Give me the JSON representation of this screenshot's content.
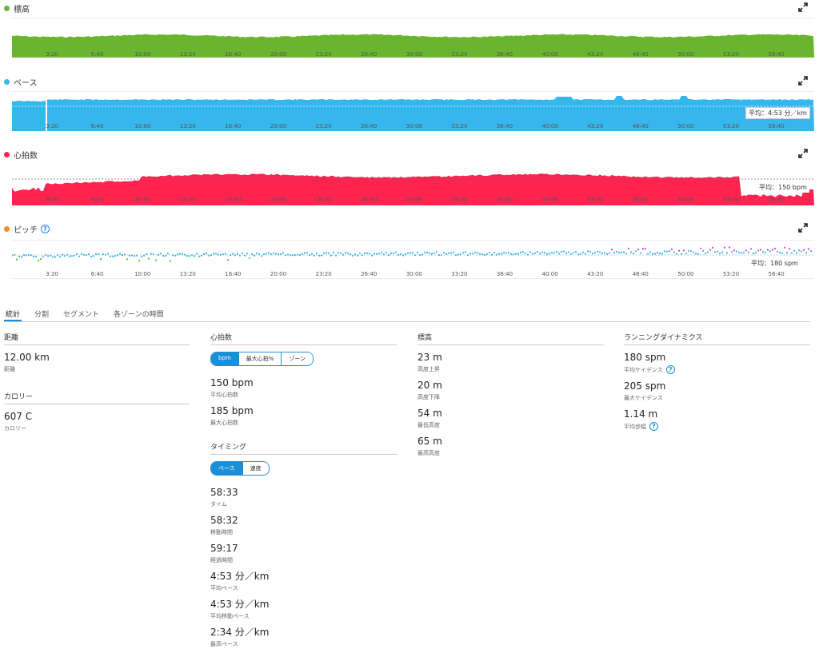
{
  "charts": {
    "time_ticks": [
      "3:20",
      "6:40",
      "10:00",
      "13:20",
      "16:40",
      "20:00",
      "23:20",
      "26:40",
      "30:00",
      "33:20",
      "36:40",
      "40:00",
      "43:20",
      "46:40",
      "50:00",
      "53:20",
      "56:40"
    ],
    "elevation": {
      "title": "標高",
      "color": "#6bb52e"
    },
    "pace": {
      "title": "ペース",
      "color": "#35b6ec",
      "avg_label": "平均：4:53 分／km"
    },
    "heart_rate": {
      "title": "心拍数",
      "color": "#ff2350",
      "avg_label": "平均：150 bpm"
    },
    "cadence": {
      "title": "ピッチ",
      "color": "#f08d1c",
      "avg_label": "平均：180 spm",
      "point_colors": [
        "#35b6ec",
        "#d93ad1",
        "#6bb52e"
      ]
    }
  },
  "tabs": [
    "統計",
    "分割",
    "セグメント",
    "各ゾーンの時間"
  ],
  "distance": {
    "title": "距離",
    "value": "12.00 km",
    "label": "距離"
  },
  "calories": {
    "title": "カロリー",
    "value": "607 C",
    "label": "カロリー"
  },
  "hr_section": {
    "title": "心拍数",
    "segments": [
      "bpm",
      "最大心拍%",
      "ゾーン"
    ],
    "stats": [
      {
        "value": "150 bpm",
        "label": "平均心拍数"
      },
      {
        "value": "185 bpm",
        "label": "最大心拍数"
      }
    ]
  },
  "timing": {
    "title": "タイミング",
    "segments": [
      "ペース",
      "速度"
    ],
    "stats": [
      {
        "value": "58:33",
        "label": "タイム"
      },
      {
        "value": "58:32",
        "label": "移動時間"
      },
      {
        "value": "59:17",
        "label": "経過時間"
      },
      {
        "value": "4:53 分／km",
        "label": "平均ペース"
      },
      {
        "value": "4:53 分／km",
        "label": "平均移動ペース"
      },
      {
        "value": "2:34 分／km",
        "label": "最高ペース"
      }
    ]
  },
  "elevation_section": {
    "title": "標高",
    "stats": [
      {
        "value": "23 m",
        "label": "高度上昇"
      },
      {
        "value": "20 m",
        "label": "高度下降"
      },
      {
        "value": "54 m",
        "label": "最低高度"
      },
      {
        "value": "65 m",
        "label": "最高高度"
      }
    ]
  },
  "running_dynamics": {
    "title": "ランニングダイナミクス",
    "stats": [
      {
        "value": "180 spm",
        "label": "平均ケイデンス",
        "help": true
      },
      {
        "value": "205 spm",
        "label": "最大ケイデンス",
        "help": false
      },
      {
        "value": "1.14 m",
        "label": "平均歩幅",
        "help": true
      }
    ]
  }
}
